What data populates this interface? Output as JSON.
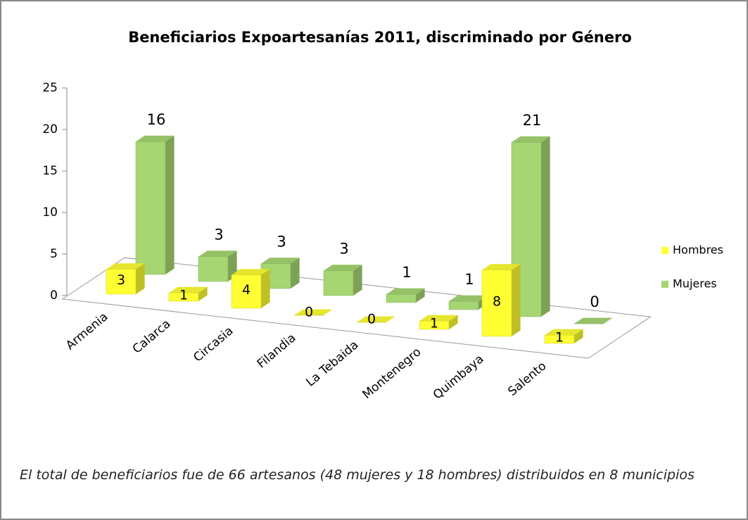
{
  "chart_data": {
    "type": "bar3d",
    "title": "Beneficiarios Expoartesanías 2011, discriminado por Género",
    "categories": [
      "Armenia",
      "Calarca",
      "Circasia",
      "Filandia",
      "La Tebaida",
      "Montenegro",
      "Quimbaya",
      "Salento"
    ],
    "series": [
      {
        "name": "Hombres",
        "color": "#ffff33",
        "values": [
          3,
          1,
          4,
          0,
          0,
          1,
          8,
          1
        ]
      },
      {
        "name": "Mujeres",
        "color": "#a6d672",
        "values": [
          16,
          3,
          3,
          3,
          1,
          1,
          21,
          0
        ]
      }
    ],
    "ylim": [
      0,
      25
    ],
    "yticks": [
      0,
      5,
      10,
      15,
      20,
      25
    ],
    "legend": "right",
    "note": "El total de beneficiarios fue de 66 artesanos (48 mujeres y 18 hombres) distribuidos en 8 municipios"
  }
}
